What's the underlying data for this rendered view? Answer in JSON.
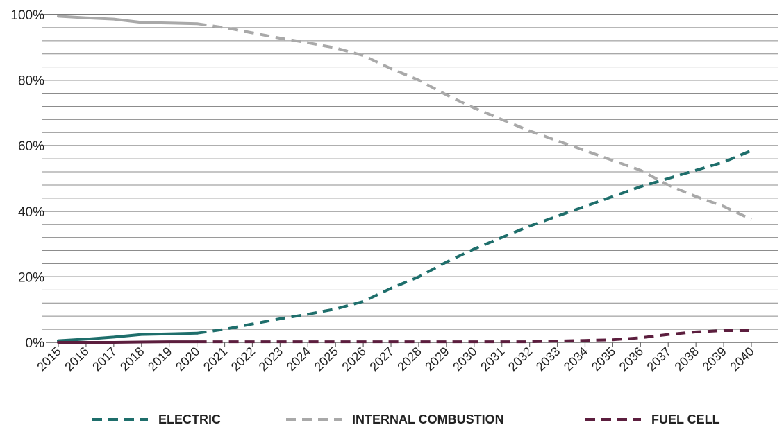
{
  "chart_data": {
    "type": "line",
    "x": [
      2015,
      2016,
      2017,
      2018,
      2019,
      2020,
      2021,
      2022,
      2023,
      2024,
      2025,
      2026,
      2027,
      2028,
      2029,
      2030,
      2031,
      2032,
      2033,
      2034,
      2035,
      2036,
      2037,
      2038,
      2039,
      2040
    ],
    "x_tick_labels": [
      "2015",
      "2016",
      "2017",
      "2018",
      "2019",
      "2020",
      "2021",
      "2022",
      "2023",
      "2024",
      "2025",
      "2026",
      "2027",
      "2028",
      "2029",
      "2030",
      "2031",
      "2032",
      "2033",
      "2034",
      "2035",
      "2036",
      "2037",
      "2038",
      "2039",
      "2040"
    ],
    "y_ticks": [
      0,
      20,
      40,
      60,
      80,
      100
    ],
    "y_tick_labels": [
      "0%",
      "20%",
      "40%",
      "60%",
      "80%",
      "100%"
    ],
    "ylim": [
      0,
      100
    ],
    "grid": "horizontal, major every 20% and minor every 4%",
    "actual_through": 2020,
    "projection_style": "dashed after 2020",
    "legend_position": "bottom",
    "series": [
      {
        "name": "ELECTRIC",
        "color": "#1e6e6b",
        "values": [
          0.5,
          1.0,
          1.6,
          2.4,
          2.6,
          2.8,
          4.0,
          5.6,
          7.2,
          8.6,
          10.2,
          12.5,
          16.5,
          20.0,
          24.5,
          28.5,
          32.0,
          35.5,
          38.5,
          41.5,
          44.5,
          47.5,
          50.0,
          52.5,
          55.0,
          58.5
        ]
      },
      {
        "name": "INTERNAL COMBUSTION",
        "color": "#a9a9a9",
        "values": [
          99.5,
          99.0,
          98.6,
          97.6,
          97.4,
          97.2,
          96.0,
          94.4,
          92.8,
          91.4,
          89.8,
          87.5,
          83.5,
          80.0,
          75.5,
          71.5,
          68.0,
          64.5,
          61.5,
          58.5,
          55.5,
          52.5,
          48.0,
          44.5,
          41.5,
          37.5
        ]
      },
      {
        "name": "FUEL CELL",
        "color": "#5c1e3e",
        "values": [
          0,
          0,
          0,
          0.1,
          0.2,
          0.2,
          0.2,
          0.2,
          0.2,
          0.2,
          0.2,
          0.2,
          0.2,
          0.2,
          0.2,
          0.2,
          0.2,
          0.2,
          0.4,
          0.6,
          0.8,
          1.4,
          2.4,
          3.2,
          3.6,
          3.6
        ]
      }
    ]
  }
}
